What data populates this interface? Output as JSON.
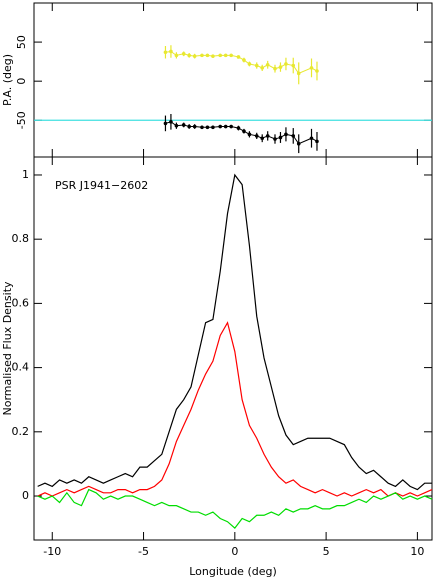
{
  "chart_data": [
    {
      "type": "errorbar",
      "ylabel": "P.A. (deg)",
      "xlim": [
        -11,
        10.8
      ],
      "ylim": [
        -97,
        100
      ],
      "yticks": [
        -50,
        0,
        50
      ],
      "hline": -50,
      "hline_color": "#40e0e0",
      "x": [
        -3.8,
        -3.5,
        -3.2,
        -2.8,
        -2.5,
        -2.2,
        -1.8,
        -1.5,
        -1.2,
        -0.8,
        -0.5,
        -0.2,
        0.2,
        0.5,
        0.8,
        1.2,
        1.5,
        1.8,
        2.2,
        2.5,
        2.8,
        3.2,
        3.5,
        4.2,
        4.5
      ],
      "series": [
        {
          "color": "#e8e830",
          "values": [
            37,
            38,
            33,
            35,
            33,
            32,
            33,
            33,
            32,
            33,
            33,
            33,
            31,
            27,
            22,
            20,
            17,
            21,
            16,
            18,
            22,
            20,
            10,
            17,
            13
          ],
          "errors": [
            8,
            8,
            4,
            3,
            3,
            3,
            2,
            2,
            2,
            2,
            2,
            2,
            2,
            3,
            3,
            4,
            4,
            5,
            5,
            6,
            8,
            10,
            14,
            12,
            12
          ]
        },
        {
          "color": "#000000",
          "values": [
            -54,
            -52,
            -57,
            -56,
            -58,
            -58,
            -59,
            -59,
            -59,
            -58,
            -58,
            -58,
            -60,
            -64,
            -68,
            -70,
            -73,
            -70,
            -74,
            -72,
            -68,
            -70,
            -80,
            -73,
            -77
          ],
          "errors": [
            10,
            10,
            4,
            3,
            3,
            3,
            2,
            2,
            2,
            2,
            2,
            2,
            3,
            3,
            4,
            4,
            5,
            6,
            6,
            7,
            9,
            10,
            12,
            12,
            12
          ]
        }
      ]
    },
    {
      "type": "line",
      "xlabel": "Longitude (deg)",
      "ylabel": "Normalised Flux Density",
      "annotation": "PSR J1941−2602",
      "xlim": [
        -11,
        10.8
      ],
      "ylim": [
        -0.137,
        1.056
      ],
      "xticks": [
        -10,
        -5,
        0,
        5,
        10
      ],
      "yticks": [
        0,
        0.2,
        0.4,
        0.6,
        0.8,
        1
      ],
      "x": [
        -10.8,
        -10.4,
        -10,
        -9.6,
        -9.2,
        -8.8,
        -8.4,
        -8,
        -7.6,
        -7.2,
        -6.8,
        -6.4,
        -6,
        -5.6,
        -5.2,
        -4.8,
        -4.4,
        -4,
        -3.6,
        -3.2,
        -2.8,
        -2.4,
        -2,
        -1.6,
        -1.2,
        -0.8,
        -0.4,
        0,
        0.4,
        0.8,
        1.2,
        1.6,
        2,
        2.4,
        2.8,
        3.2,
        3.6,
        4,
        4.4,
        4.8,
        5.2,
        5.6,
        6,
        6.4,
        6.8,
        7.2,
        7.6,
        8,
        8.4,
        8.8,
        9.2,
        9.6,
        10,
        10.4,
        10.8
      ],
      "series": [
        {
          "color": "#000000",
          "values": [
            0.03,
            0.04,
            0.03,
            0.05,
            0.04,
            0.05,
            0.04,
            0.06,
            0.05,
            0.04,
            0.05,
            0.06,
            0.07,
            0.06,
            0.09,
            0.09,
            0.11,
            0.13,
            0.2,
            0.27,
            0.3,
            0.34,
            0.44,
            0.54,
            0.55,
            0.7,
            0.88,
            1,
            0.97,
            0.78,
            0.56,
            0.43,
            0.34,
            0.25,
            0.19,
            0.16,
            0.17,
            0.18,
            0.18,
            0.18,
            0.18,
            0.17,
            0.16,
            0.12,
            0.09,
            0.07,
            0.08,
            0.06,
            0.04,
            0.03,
            0.05,
            0.03,
            0.02,
            0.04,
            0.04
          ]
        },
        {
          "color": "#ff0000",
          "values": [
            0,
            0.01,
            0,
            0.01,
            0.02,
            0.01,
            0.02,
            0.03,
            0.02,
            0.01,
            0.01,
            0.02,
            0.02,
            0.01,
            0.02,
            0.02,
            0.03,
            0.05,
            0.1,
            0.17,
            0.22,
            0.27,
            0.33,
            0.38,
            0.42,
            0.5,
            0.54,
            0.45,
            0.3,
            0.22,
            0.18,
            0.13,
            0.09,
            0.06,
            0.04,
            0.05,
            0.03,
            0.02,
            0.01,
            0.02,
            0.01,
            0,
            0.01,
            0,
            0.01,
            0.02,
            0.01,
            0.02,
            0,
            0.01,
            0,
            0.01,
            0,
            0.01,
            0.02
          ]
        },
        {
          "color": "#00dd00",
          "values": [
            0,
            -0.01,
            0,
            -0.02,
            0.01,
            -0.02,
            -0.03,
            0.02,
            0.01,
            -0.01,
            0,
            -0.01,
            0,
            0,
            -0.01,
            -0.02,
            -0.03,
            -0.02,
            -0.03,
            -0.03,
            -0.04,
            -0.05,
            -0.05,
            -0.06,
            -0.05,
            -0.07,
            -0.08,
            -0.1,
            -0.07,
            -0.08,
            -0.06,
            -0.06,
            -0.05,
            -0.06,
            -0.04,
            -0.05,
            -0.04,
            -0.04,
            -0.03,
            -0.04,
            -0.04,
            -0.03,
            -0.03,
            -0.02,
            -0.01,
            -0.02,
            0,
            -0.01,
            0,
            0.01,
            -0.01,
            0,
            -0.01,
            0,
            -0.01
          ]
        }
      ]
    }
  ]
}
